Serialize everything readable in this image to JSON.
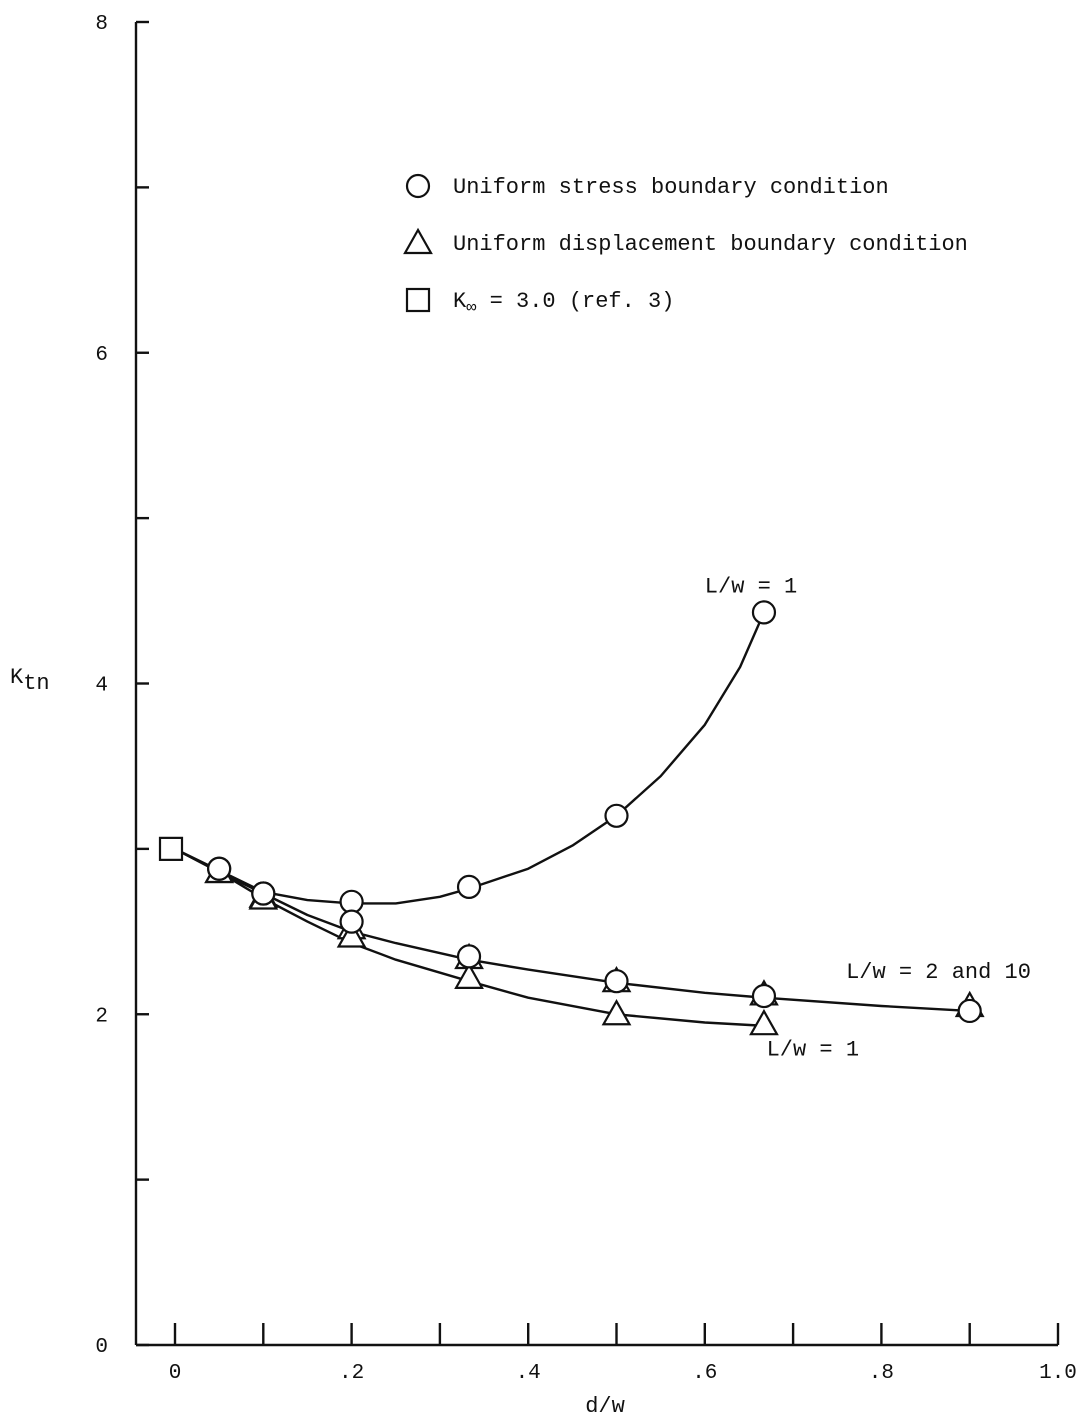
{
  "chart_data": {
    "type": "line",
    "xlabel": "d/w",
    "ylabel_main": "K",
    "ylabel_sub": "tn",
    "xlim": [
      0,
      1.0
    ],
    "ylim": [
      0,
      8
    ],
    "x_ticks": [
      0,
      0.1,
      0.2,
      0.3,
      0.4,
      0.5,
      0.6,
      0.7,
      0.8,
      0.9,
      1.0
    ],
    "x_tick_labels": [
      {
        "x": 0,
        "label": "0"
      },
      {
        "x": 0.2,
        "label": ".2"
      },
      {
        "x": 0.4,
        "label": ".4"
      },
      {
        "x": 0.6,
        "label": ".6"
      },
      {
        "x": 0.8,
        "label": ".8"
      },
      {
        "x": 1.0,
        "label": "1.0"
      }
    ],
    "y_ticks": [
      0,
      1,
      2,
      3,
      4,
      5,
      6,
      7,
      8
    ],
    "y_tick_labels": [
      {
        "y": 0,
        "label": "0"
      },
      {
        "y": 2,
        "label": "2"
      },
      {
        "y": 4,
        "label": "4"
      },
      {
        "y": 6,
        "label": "6"
      },
      {
        "y": 8,
        "label": "8"
      }
    ],
    "legend": {
      "placement": "top-right",
      "entries": [
        {
          "marker": "circle",
          "label": "Uniform stress boundary condition"
        },
        {
          "marker": "triangle",
          "label": "Uniform displacement boundary condition"
        },
        {
          "marker": "square",
          "label_main": "K",
          "label_sub": "∞",
          "label_rest": " = 3.0 (ref. 3)"
        }
      ]
    },
    "reference_point": {
      "marker": "square",
      "x": 0.0,
      "y": 3.0
    },
    "series": [
      {
        "marker": "circle",
        "points": [
          [
            0.05,
            2.88
          ],
          [
            0.1,
            2.73
          ],
          [
            0.2,
            2.68
          ],
          [
            0.333,
            2.77
          ],
          [
            0.5,
            3.2
          ],
          [
            0.667,
            4.43
          ]
        ],
        "curve": [
          [
            0.0,
            3.0
          ],
          [
            0.05,
            2.87
          ],
          [
            0.1,
            2.74
          ],
          [
            0.15,
            2.69
          ],
          [
            0.2,
            2.67
          ],
          [
            0.25,
            2.67
          ],
          [
            0.3,
            2.71
          ],
          [
            0.333,
            2.76
          ],
          [
            0.4,
            2.88
          ],
          [
            0.45,
            3.02
          ],
          [
            0.5,
            3.2
          ],
          [
            0.55,
            3.44
          ],
          [
            0.6,
            3.75
          ],
          [
            0.64,
            4.1
          ],
          [
            0.667,
            4.43
          ]
        ]
      },
      {
        "marker": "circle",
        "points": [
          [
            0.05,
            2.88
          ],
          [
            0.1,
            2.73
          ],
          [
            0.2,
            2.56
          ],
          [
            0.333,
            2.35
          ],
          [
            0.5,
            2.2
          ],
          [
            0.667,
            2.11
          ],
          [
            0.9,
            2.02
          ]
        ]
      },
      {
        "marker": "triangle",
        "points": [
          [
            0.05,
            2.86
          ],
          [
            0.1,
            2.71
          ],
          [
            0.2,
            2.52
          ],
          [
            0.333,
            2.34
          ],
          [
            0.5,
            2.2
          ],
          [
            0.667,
            2.12
          ],
          [
            0.9,
            2.05
          ]
        ],
        "curve": [
          [
            0.0,
            3.0
          ],
          [
            0.05,
            2.86
          ],
          [
            0.1,
            2.73
          ],
          [
            0.15,
            2.6
          ],
          [
            0.2,
            2.5
          ],
          [
            0.25,
            2.43
          ],
          [
            0.333,
            2.33
          ],
          [
            0.4,
            2.27
          ],
          [
            0.5,
            2.19
          ],
          [
            0.6,
            2.13
          ],
          [
            0.667,
            2.1
          ],
          [
            0.8,
            2.05
          ],
          [
            0.9,
            2.02
          ]
        ]
      },
      {
        "marker": "triangle",
        "points": [
          [
            0.05,
            2.86
          ],
          [
            0.1,
            2.7
          ],
          [
            0.2,
            2.47
          ],
          [
            0.333,
            2.22
          ],
          [
            0.5,
            2.0
          ],
          [
            0.667,
            1.94
          ]
        ],
        "curve": [
          [
            0.0,
            3.0
          ],
          [
            0.05,
            2.86
          ],
          [
            0.1,
            2.7
          ],
          [
            0.15,
            2.56
          ],
          [
            0.2,
            2.43
          ],
          [
            0.25,
            2.33
          ],
          [
            0.333,
            2.2
          ],
          [
            0.4,
            2.1
          ],
          [
            0.5,
            2.0
          ],
          [
            0.6,
            1.95
          ],
          [
            0.667,
            1.93
          ]
        ]
      }
    ],
    "annotations": [
      {
        "text": "L/w = 1",
        "x": 0.6,
        "y": 4.55
      },
      {
        "text": "L/w = 2 and 10",
        "x": 0.76,
        "y": 2.22
      },
      {
        "text": "L/w = 1",
        "x": 0.67,
        "y": 1.75
      }
    ]
  }
}
